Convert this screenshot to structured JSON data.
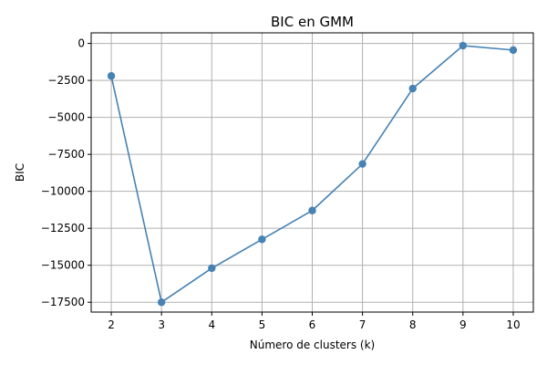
{
  "chart_data": {
    "type": "line",
    "title": "BIC en GMM",
    "xlabel": "Número de clusters (k)",
    "ylabel": "BIC",
    "x": [
      2,
      3,
      4,
      5,
      6,
      7,
      8,
      9,
      10
    ],
    "series": [
      {
        "values": [
          -2200,
          -17500,
          -15200,
          -13250,
          -11300,
          -8150,
          -3050,
          -150,
          -450
        ],
        "color": "#4682b4",
        "marker": "circle"
      }
    ],
    "xticks": [
      "2",
      "3",
      "4",
      "5",
      "6",
      "7",
      "8",
      "9",
      "10"
    ],
    "yticks": [
      "0",
      "−2500",
      "−5000",
      "−7500",
      "−10000",
      "−12500",
      "−15000",
      "−17500"
    ],
    "xlim": [
      1.6,
      10.4
    ],
    "ylim": [
      -18165,
      715
    ],
    "grid": true,
    "legend": "none"
  }
}
